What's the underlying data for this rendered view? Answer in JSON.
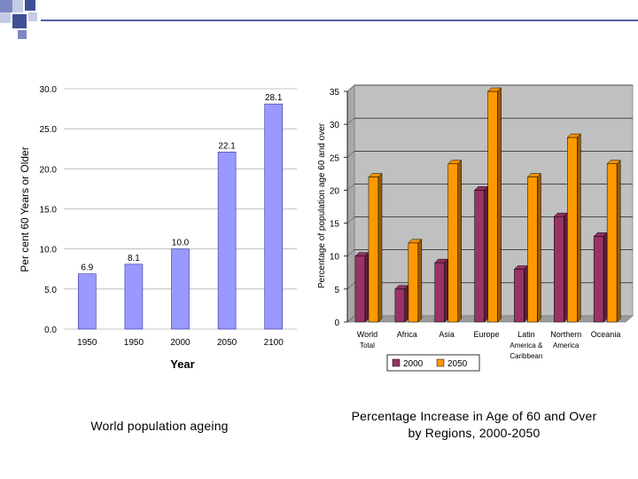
{
  "colors": {
    "deco_dark": "#3f4f95",
    "deco_mid": "#7b88c4",
    "deco_light": "#c4cbe6",
    "bar_left": "#9999ff",
    "bar_left_edge": "#333399",
    "bar_2000": "#993366",
    "bar_2050": "#ff9900",
    "wall": "#c0c0c0"
  },
  "captions": {
    "left": "World population ageing",
    "right_line1": "Percentage Increase in Age of 60 and Over",
    "right_line2": "by Regions, 2000-2050"
  },
  "chart_data": [
    {
      "type": "bar",
      "title": "",
      "xlabel": "Year",
      "ylabel": "Per cent 60 Years or Older",
      "categories": [
        "1950",
        "1950",
        "2000",
        "2050",
        "2100"
      ],
      "values": [
        6.9,
        8.1,
        10.0,
        22.1,
        28.1
      ],
      "value_labels": [
        "6.9",
        "8.1",
        "10.0",
        "22.1",
        "28.1"
      ],
      "yticks": [
        "0.0",
        "5.0",
        "10.0",
        "15.0",
        "20.0",
        "25.0",
        "30.0"
      ],
      "ylim": [
        0,
        30
      ],
      "grid": true
    },
    {
      "type": "bar",
      "title": "",
      "xlabel": "",
      "ylabel": "Percentage of population age 60 and over",
      "categories": [
        [
          "World",
          "Total"
        ],
        [
          "Africa"
        ],
        [
          "Asia"
        ],
        [
          "Europe"
        ],
        [
          "Latin",
          "America &",
          "Caribbean"
        ],
        [
          "Northern",
          "America"
        ],
        [
          "Oceania"
        ]
      ],
      "series": [
        {
          "name": "2000",
          "values": [
            10,
            5,
            9,
            20,
            8,
            16,
            13
          ]
        },
        {
          "name": "2050",
          "values": [
            22,
            12,
            24,
            35,
            22,
            28,
            24
          ]
        }
      ],
      "yticks": [
        "0",
        "5",
        "10",
        "15",
        "20",
        "25",
        "30",
        "35"
      ],
      "ylim": [
        0,
        35
      ],
      "grid": true,
      "legend": "bottom"
    }
  ]
}
